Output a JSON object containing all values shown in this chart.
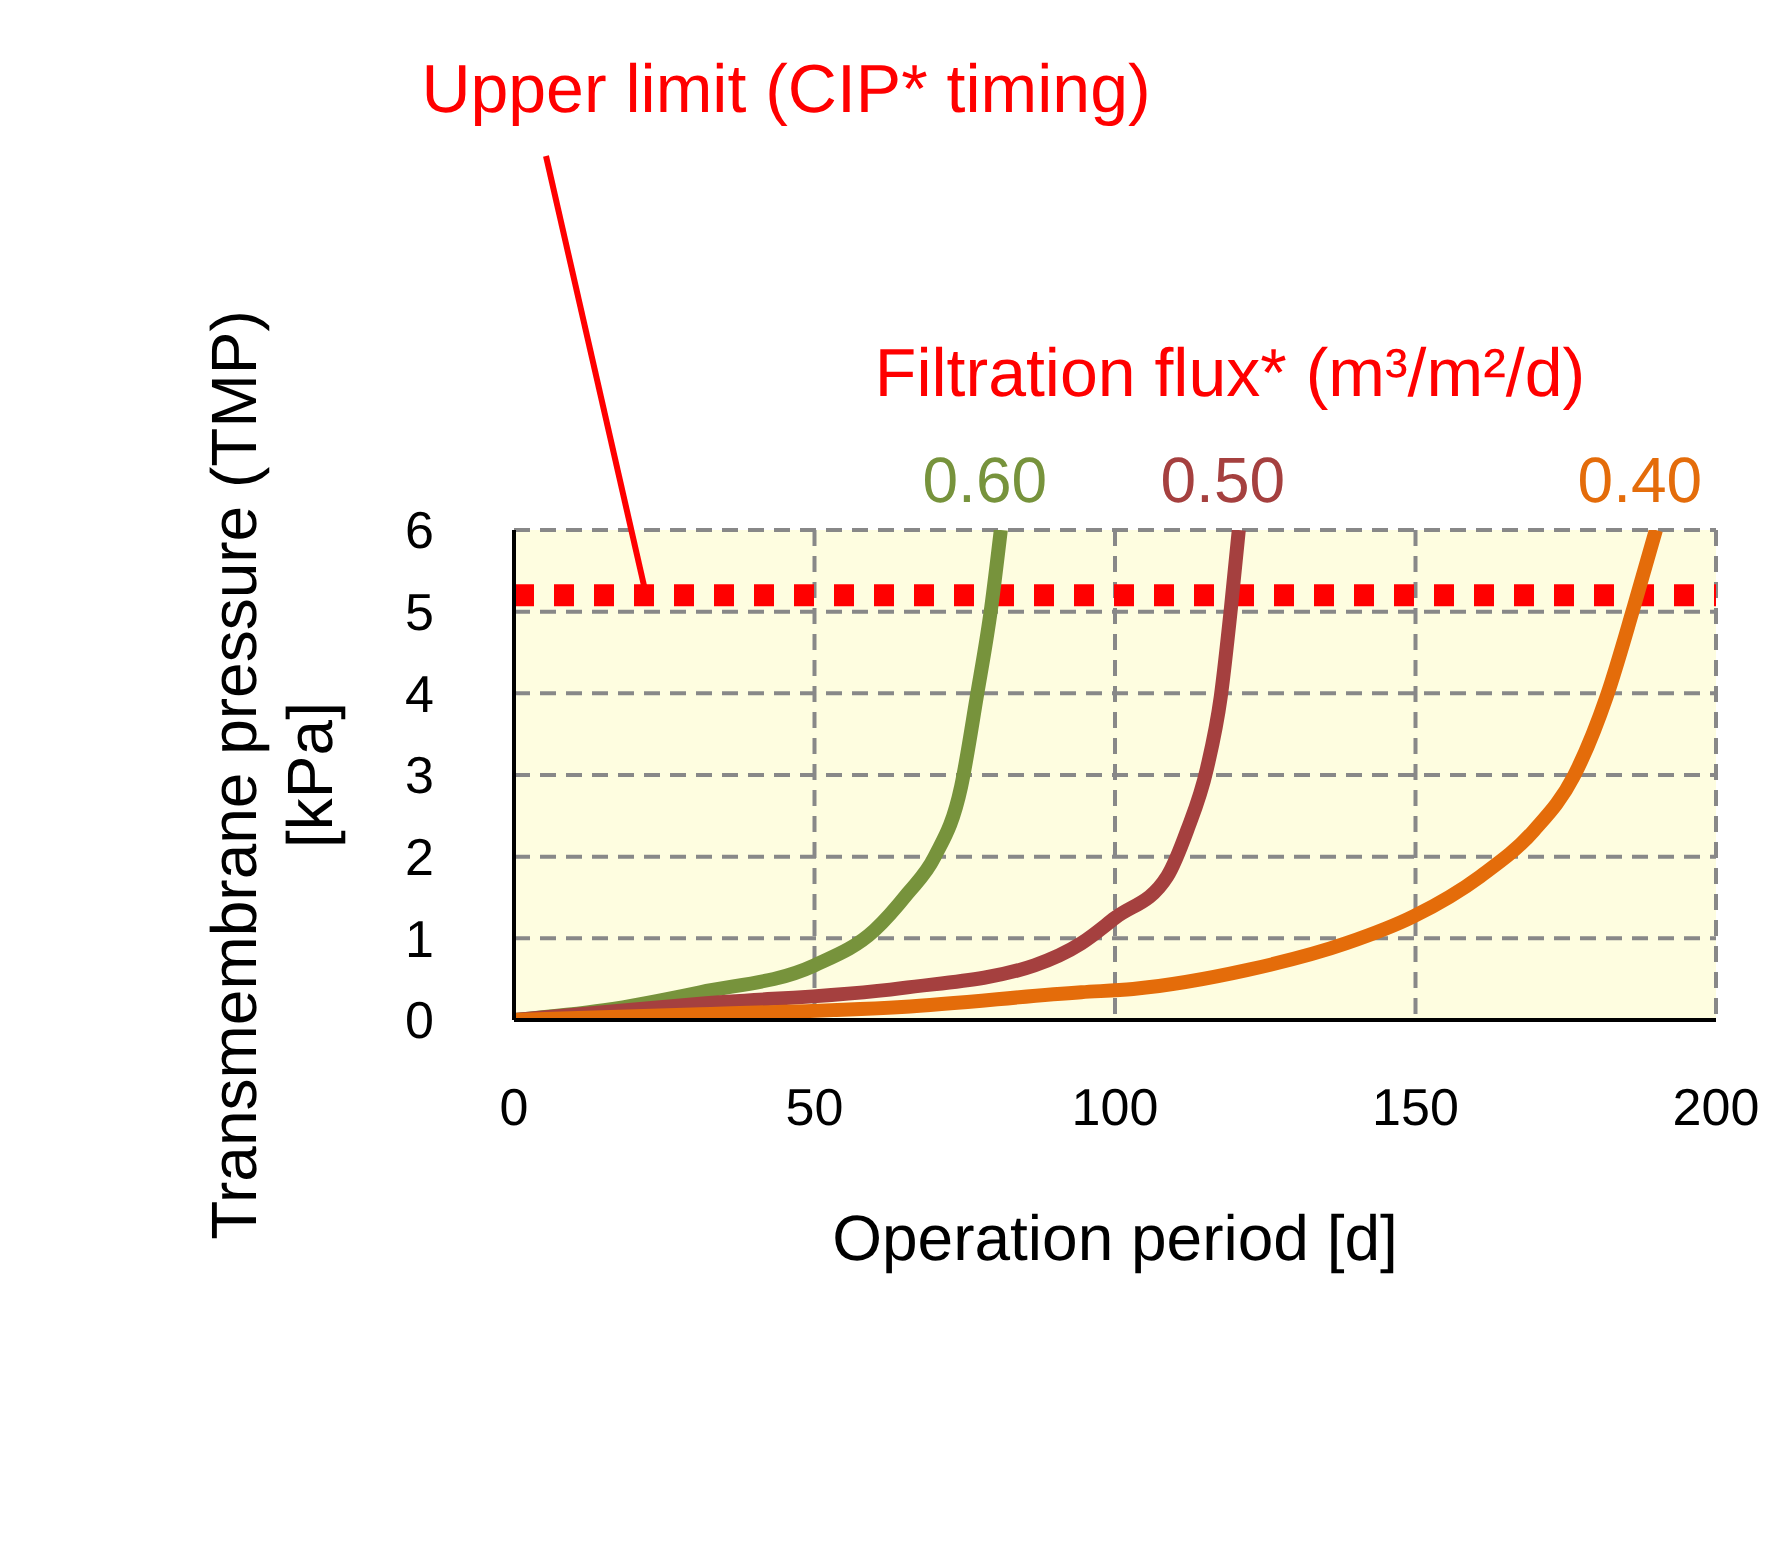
{
  "chart_data": {
    "type": "line",
    "xlabel": "Operation period [d]",
    "ylabel": "Transmembrane pressure (TMP) [kPa]",
    "legend_title": "Filtration flux* (m³/m²/d)",
    "annotations": [
      {
        "text": "Upper limit (CIP* timing)",
        "x": 22,
        "y": 5.2
      }
    ],
    "series": [
      {
        "name": "0.60",
        "color": "#77933c",
        "x": [
          0,
          15,
          31,
          50,
          60,
          65.5,
          70,
          74.4,
          77,
          79.4,
          81
        ],
        "values": [
          0,
          0.12,
          0.34,
          0.67,
          1.1,
          1.55,
          2.0,
          2.86,
          3.96,
          5.05,
          6
        ]
      },
      {
        "name": "0.50",
        "color": "#a5403f",
        "x": [
          0,
          31,
          64.5,
          86.6,
          94.4,
          100,
          108.7,
          112,
          115.3,
          117.6,
          119.3,
          120.6
        ],
        "values": [
          0,
          0.2,
          0.39,
          0.67,
          0.94,
          1.25,
          1.76,
          2.32,
          3.08,
          3.96,
          5.05,
          6
        ]
      },
      {
        "name": "0.40",
        "color": "#e46c0a",
        "x": [
          0,
          31,
          64.5,
          94.4,
          103,
          121.9,
          138.5,
          149.7,
          160.8,
          169.7,
          176.3,
          181.8,
          186.3,
          190
        ],
        "values": [
          0,
          0.07,
          0.16,
          0.34,
          0.38,
          0.61,
          0.94,
          1.27,
          1.76,
          2.32,
          2.98,
          3.96,
          5.05,
          6
        ]
      }
    ],
    "xlim": [
      0,
      200
    ],
    "xticks": [
      0,
      50,
      100,
      150,
      200
    ],
    "ylim": [
      0,
      6
    ],
    "yticks": [
      0,
      1,
      2,
      3,
      4,
      5,
      6
    ],
    "grid": true,
    "line_style": "solid",
    "marker": "none",
    "ref_lines": [
      {
        "axis": "y",
        "value": 5.2,
        "color": "#ff0000",
        "line_style": "dotted"
      }
    ]
  }
}
